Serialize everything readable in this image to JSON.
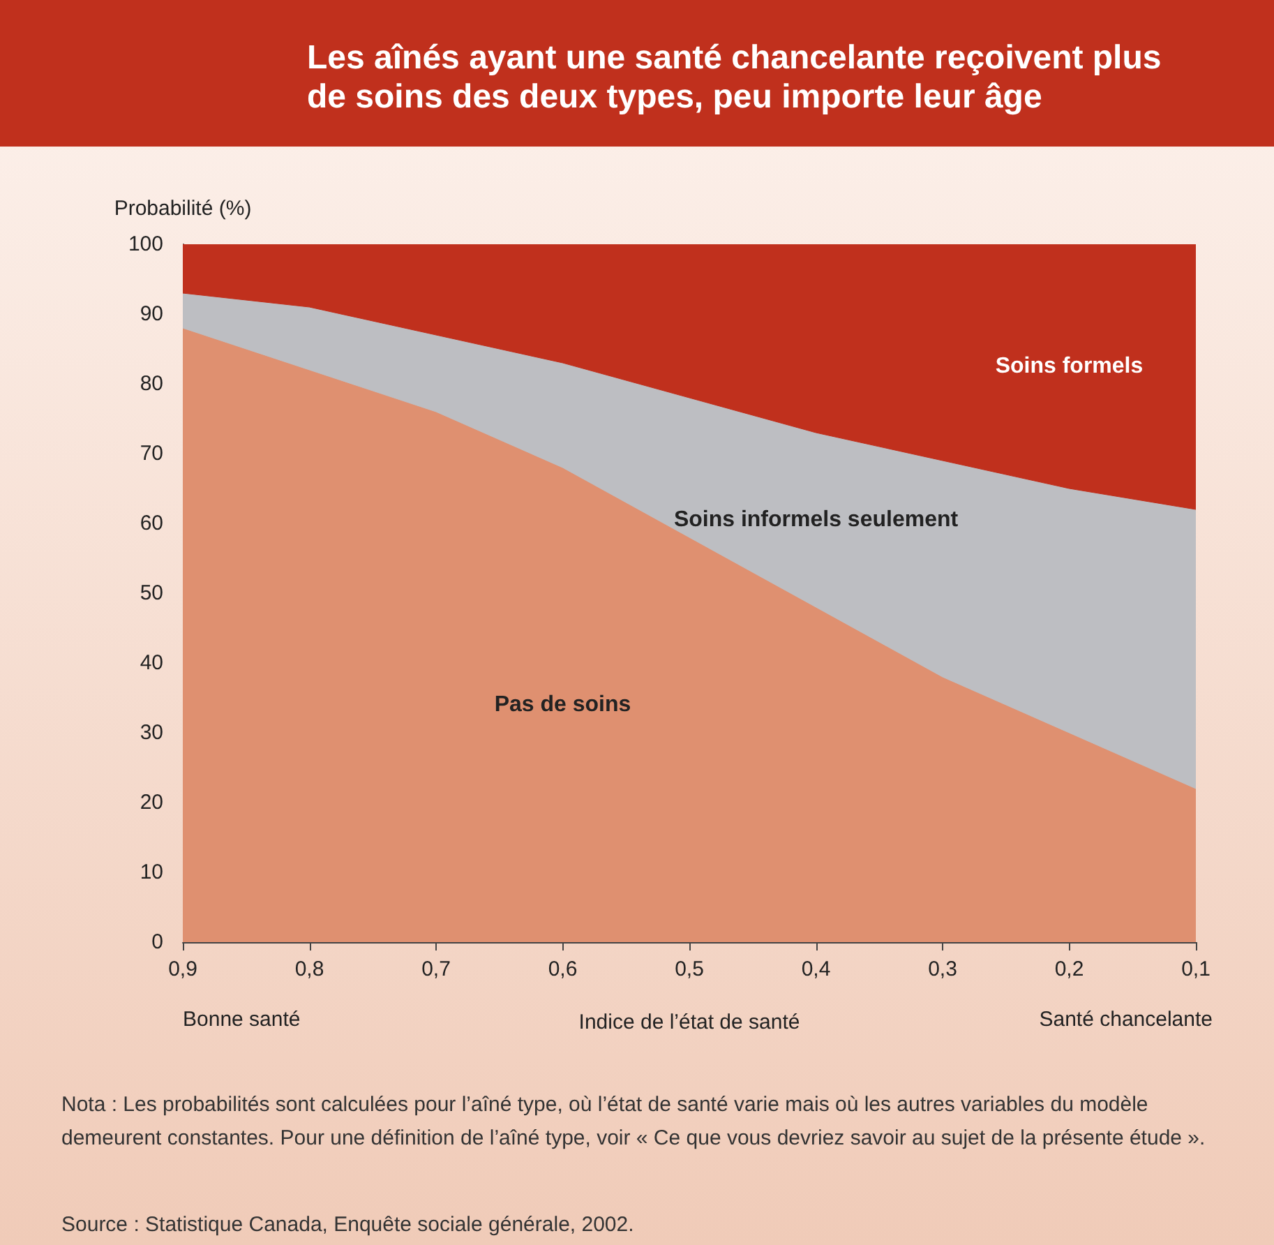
{
  "chart_data": {
    "type": "area",
    "title": "Les aînés ayant une santé chancelante reçoivent plus de soins des deux types, peu importe leur âge",
    "xlabel": "Indice de l’état de santé",
    "ylabel": "Probabilité (%)",
    "stacked": true,
    "x": [
      0.9,
      0.8,
      0.7,
      0.6,
      0.5,
      0.4,
      0.3,
      0.2,
      0.1
    ],
    "series": [
      {
        "name": "Pas de soins",
        "color": "#df9070",
        "values": [
          88,
          82,
          76,
          68,
          58,
          48,
          38,
          30,
          22
        ]
      },
      {
        "name": "Soins informels seulement",
        "color": "#bdbec2",
        "values": [
          5,
          9,
          11,
          15,
          20,
          25,
          31,
          35,
          40
        ]
      },
      {
        "name": "Soins formels",
        "color": "#c0301d",
        "values": [
          7,
          9,
          13,
          17,
          22,
          27,
          31,
          35,
          38
        ]
      }
    ],
    "xlim": [
      0.9,
      0.1
    ],
    "xticks": [
      {
        "value": 0.9,
        "label": "0,9"
      },
      {
        "value": 0.8,
        "label": "0,8"
      },
      {
        "value": 0.7,
        "label": "0,7"
      },
      {
        "value": 0.6,
        "label": "0,6"
      },
      {
        "value": 0.5,
        "label": "0,5"
      },
      {
        "value": 0.4,
        "label": "0,4"
      },
      {
        "value": 0.3,
        "label": "0,3"
      },
      {
        "value": 0.2,
        "label": "0,2"
      },
      {
        "value": 0.1,
        "label": "0,1"
      }
    ],
    "ylim": [
      0,
      100
    ],
    "yticks": [
      0,
      10,
      20,
      30,
      40,
      50,
      60,
      70,
      80,
      90,
      100
    ],
    "grid": false,
    "legend": false,
    "annotations": [
      "Bonne santé",
      "Santé chancelante",
      "Nota : Les probabilités sont calculées pour l’aîné type, où l’état de santé varie mais où les autres variables du modèle demeurent constantes. Pour une définition de l’aîné type, voir « Ce que vous devriez savoir au sujet de la présente étude ».",
      "Source : Statistique Canada, Enquête sociale générale, 2002."
    ]
  }
}
